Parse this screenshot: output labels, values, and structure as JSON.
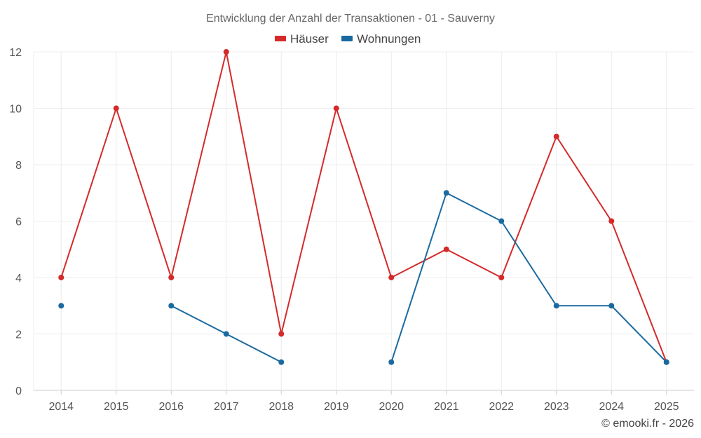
{
  "chart_data": {
    "type": "line",
    "title": "Entwicklung der Anzahl der Transaktionen - 01 - Sauverny",
    "categories": [
      "2014",
      "2015",
      "2016",
      "2017",
      "2018",
      "2019",
      "2020",
      "2021",
      "2022",
      "2023",
      "2024",
      "2025"
    ],
    "ylim": [
      0,
      12
    ],
    "yticks": [
      0,
      2,
      4,
      6,
      8,
      10,
      12
    ],
    "grid": true,
    "legend_position": "top-center",
    "xlabel": "",
    "ylabel": "",
    "series": [
      {
        "name": "Häuser",
        "color": "#d42a2a",
        "values": [
          4,
          10,
          4,
          12,
          2,
          10,
          4,
          5,
          4,
          9,
          6,
          1
        ]
      },
      {
        "name": "Wohnungen",
        "color": "#1a6aa0",
        "values": [
          3,
          null,
          3,
          2,
          1,
          null,
          1,
          7,
          6,
          3,
          3,
          1
        ]
      }
    ]
  },
  "credit": "© emooki.fr - 2026"
}
